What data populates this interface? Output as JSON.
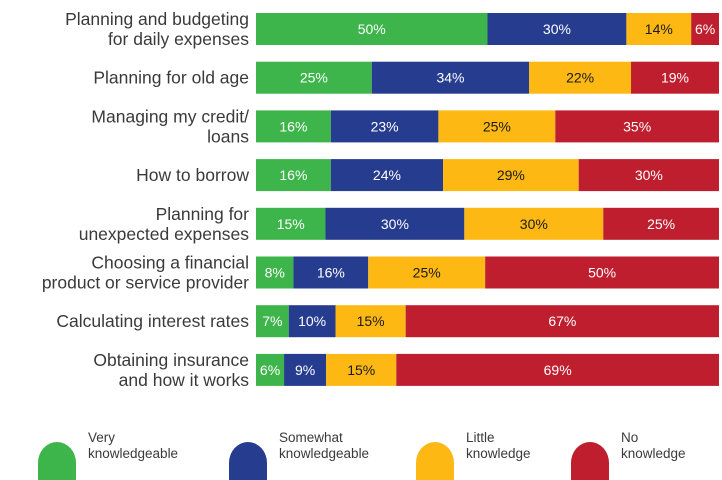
{
  "chart_data": {
    "type": "bar",
    "orientation": "horizontal",
    "stacked": true,
    "categories": [
      [
        "Planning and budgeting",
        "for daily expenses"
      ],
      [
        "Planning for old age"
      ],
      [
        "Managing my credit/",
        "loans"
      ],
      [
        "How to borrow"
      ],
      [
        "Planning for",
        "unexpected expenses"
      ],
      [
        "Choosing a financial",
        "product or service provider"
      ],
      [
        "Calculating interest rates"
      ],
      [
        "Obtaining insurance",
        "and how it works"
      ]
    ],
    "series": [
      {
        "name": "Very knowledgeable",
        "legend_lines": [
          "Very",
          "knowledgeable"
        ],
        "color": "#3DB54A",
        "label_color": "#ffffff",
        "values": [
          50,
          25,
          16,
          16,
          15,
          8,
          7,
          6
        ]
      },
      {
        "name": "Somewhat knowledgeable",
        "legend_lines": [
          "Somewhat",
          "knowledgeable"
        ],
        "color": "#263C8F",
        "label_color": "#ffffff",
        "values": [
          30,
          34,
          23,
          24,
          30,
          16,
          10,
          9
        ]
      },
      {
        "name": "Little knowledge",
        "legend_lines": [
          "Little",
          "knowledge"
        ],
        "color": "#FDB813",
        "label_color": "#1a1a1a",
        "values": [
          14,
          22,
          25,
          29,
          30,
          25,
          15,
          15
        ]
      },
      {
        "name": "No knowledge",
        "legend_lines": [
          "No knowledge"
        ],
        "color": "#BE1E2D",
        "label_color": "#ffffff",
        "values": [
          6,
          19,
          35,
          30,
          25,
          50,
          67,
          69
        ]
      }
    ],
    "value_suffix": "%",
    "legend_position": "bottom"
  }
}
